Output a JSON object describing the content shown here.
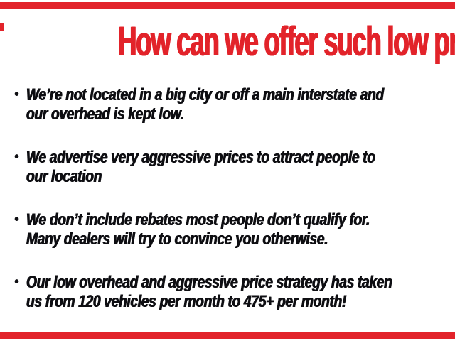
{
  "slide": {
    "title": "How can we offer such low prices?",
    "bullet_char": "•",
    "bullets": [
      {
        "line1": "We’re not located in a big city or off a main interstate and",
        "line2": "our overhead is kept low."
      },
      {
        "line1": "We advertise very aggressive prices to attract people to",
        "line2": "our location"
      },
      {
        "line1": "We don’t include rebates most people don’t qualify for.",
        "line2": "Many dealers will try to convince you otherwise."
      },
      {
        "line1": "Our low overhead and aggressive price strategy has taken",
        "line2": "us from 120 vehicles per month to 475+ per month!"
      }
    ],
    "colors": {
      "accent_red": "#e2232a",
      "text_black": "#0e0e12",
      "background": "#ffffff"
    }
  }
}
